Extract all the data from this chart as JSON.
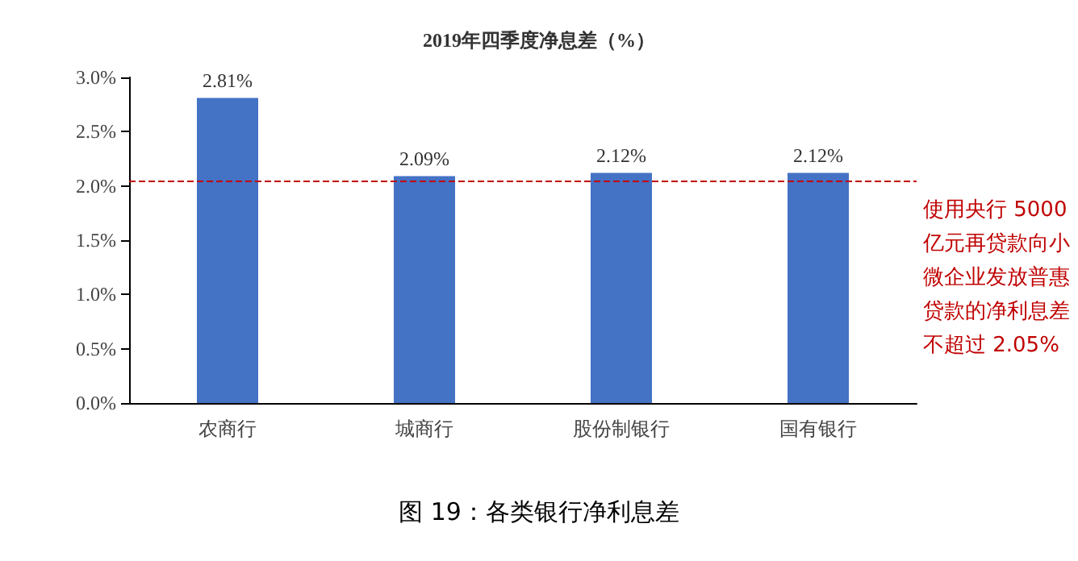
{
  "chart_data": {
    "type": "bar",
    "title": "2019年四季度净息差（%）",
    "categories": [
      "农商行",
      "城商行",
      "股份制银行",
      "国有银行"
    ],
    "values": [
      2.81,
      2.09,
      2.12,
      2.12
    ],
    "value_labels": [
      "2.81%",
      "2.09%",
      "2.12%",
      "2.12%"
    ],
    "color": "#4472c4",
    "ylim": [
      0,
      3
    ],
    "yticks": [
      {
        "value": 0,
        "label": "0.0%"
      },
      {
        "value": 0.5,
        "label": "0.5%"
      },
      {
        "value": 1,
        "label": "1.0%"
      },
      {
        "value": 1.5,
        "label": "1.5%"
      },
      {
        "value": 2,
        "label": "2.0%"
      },
      {
        "value": 2.5,
        "label": "2.5%"
      },
      {
        "value": 3,
        "label": "3.0%"
      }
    ],
    "ref_lines": [
      {
        "axis": "y",
        "value": 2.05,
        "label": "使用央行 5000 亿元再贷款向小微企业发放普惠贷款的净利息差不超过 2.05%",
        "color": "#c00000",
        "line_style": "dashed"
      }
    ],
    "annotations": [
      "图 19：各类银行净利息差"
    ],
    "grid": false
  }
}
